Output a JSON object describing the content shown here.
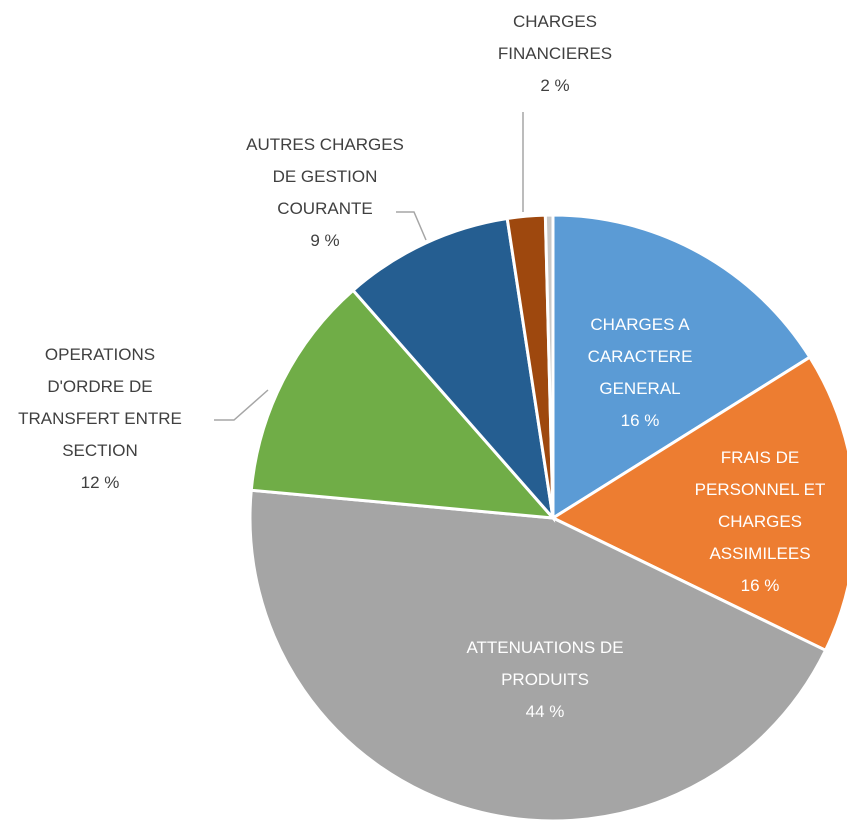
{
  "chart_data": {
    "type": "pie",
    "categories": [
      "CHARGES A\nCARACTERE\nGENERAL",
      "FRAIS DE\nPERSONNEL ET\nCHARGES\nASSIMILEES",
      "ATTENUATIONS DE\nPRODUITS",
      "OPERATIONS\nD'ORDRE DE\nTRANSFERT ENTRE\nSECTION",
      "AUTRES CHARGES\nDE GESTION\nCOURANTE",
      "CHARGES\nFINANCIERES",
      null
    ],
    "values": [
      16,
      16,
      44,
      12,
      9,
      2,
      0.4
    ],
    "value_labels": [
      "16 %",
      "16 %",
      "44 %",
      "12 %",
      "9 %",
      "2 %",
      null
    ],
    "colors": [
      "#5b9bd5",
      "#ed7d31",
      "#a5a5a5",
      "#70ad47",
      "#255e91",
      "#9e480e",
      "#c9c9c9"
    ]
  }
}
